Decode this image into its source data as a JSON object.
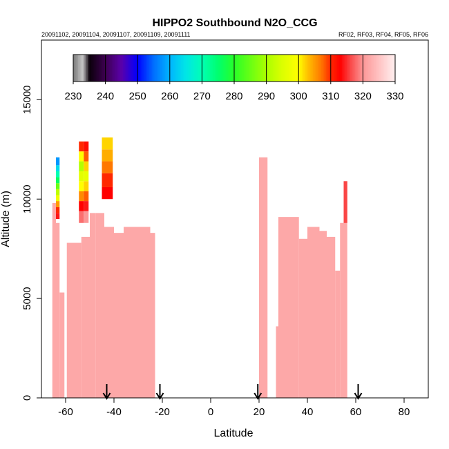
{
  "chart_data": {
    "type": "heatmap",
    "title": "HIPPO2 Southbound N2O_CCG",
    "subtitle_left": "20091102, 20091104, 20091107, 20091109, 20091111",
    "subtitle_right": "RF02, RF03, RF04, RF05, RF06",
    "xlabel": "Latitude",
    "ylabel": "Altitude (m)",
    "xlim": [
      -70,
      90
    ],
    "ylim": [
      0,
      18000
    ],
    "x_ticks": [
      -60,
      -40,
      -20,
      0,
      20,
      40,
      60,
      80
    ],
    "y_ticks": [
      0,
      5000,
      10000,
      15000
    ],
    "colorbar": {
      "range": [
        230,
        330
      ],
      "ticks": [
        230,
        240,
        250,
        260,
        270,
        280,
        290,
        300,
        310,
        320,
        330
      ]
    },
    "arrows_latitude": [
      -43,
      -21,
      19.5,
      61
    ],
    "columns": [
      {
        "x0": -65.5,
        "x1": -64,
        "y0": 0,
        "y1": 9800,
        "v": 322
      },
      {
        "x0": -64,
        "x1": -62.5,
        "y0": 0,
        "y1": 8800,
        "v": 322
      },
      {
        "x0": -62.5,
        "x1": -60.5,
        "y0": 0,
        "y1": 5300,
        "v": 322
      },
      {
        "x0": -59.5,
        "x1": -53.5,
        "y0": 0,
        "y1": 7800,
        "v": 322
      },
      {
        "x0": -53.5,
        "x1": -50,
        "y0": 0,
        "y1": 8100,
        "v": 322
      },
      {
        "x0": -50,
        "x1": -47.5,
        "y0": 0,
        "y1": 9300,
        "v": 322
      },
      {
        "x0": -47.5,
        "x1": -44,
        "y0": 0,
        "y1": 9300,
        "v": 322
      },
      {
        "x0": -44,
        "x1": -40,
        "y0": 0,
        "y1": 8600,
        "v": 322
      },
      {
        "x0": -40,
        "x1": -36,
        "y0": 0,
        "y1": 8300,
        "v": 322
      },
      {
        "x0": -36,
        "x1": -25,
        "y0": 0,
        "y1": 8600,
        "v": 322
      },
      {
        "x0": -25,
        "x1": -23,
        "y0": 0,
        "y1": 8300,
        "v": 322
      },
      {
        "x0": 20,
        "x1": 23.5,
        "y0": 0,
        "y1": 12100,
        "v": 322
      },
      {
        "x0": 27,
        "x1": 28,
        "y0": 0,
        "y1": 3600,
        "v": 322
      },
      {
        "x0": 28,
        "x1": 32,
        "y0": 0,
        "y1": 9100,
        "v": 322
      },
      {
        "x0": 32,
        "x1": 36.5,
        "y0": 0,
        "y1": 9100,
        "v": 322
      },
      {
        "x0": 36.5,
        "x1": 40,
        "y0": 0,
        "y1": 8000,
        "v": 322
      },
      {
        "x0": 40,
        "x1": 45,
        "y0": 0,
        "y1": 8600,
        "v": 322
      },
      {
        "x0": 45,
        "x1": 48,
        "y0": 0,
        "y1": 8400,
        "v": 322
      },
      {
        "x0": 48,
        "x1": 51.5,
        "y0": 0,
        "y1": 8100,
        "v": 322
      },
      {
        "x0": 51.5,
        "x1": 53.5,
        "y0": 0,
        "y1": 6400,
        "v": 322
      },
      {
        "x0": 53.5,
        "x1": 55,
        "y0": 0,
        "y1": 8800,
        "v": 322
      },
      {
        "x0": 55,
        "x1": 56.5,
        "y0": 0,
        "y1": 10900,
        "v": 322
      }
    ],
    "cells": [
      {
        "x0": -64,
        "x1": -62.5,
        "y0": 9000,
        "y1": 9300,
        "v": 314
      },
      {
        "x0": -64,
        "x1": -62.5,
        "y0": 9300,
        "y1": 9600,
        "v": 310
      },
      {
        "x0": -64,
        "x1": -62.5,
        "y0": 9600,
        "y1": 9900,
        "v": 305
      },
      {
        "x0": -64,
        "x1": -62.5,
        "y0": 9900,
        "y1": 10200,
        "v": 298
      },
      {
        "x0": -64,
        "x1": -62.5,
        "y0": 10200,
        "y1": 10500,
        "v": 292
      },
      {
        "x0": -64,
        "x1": -62.5,
        "y0": 10500,
        "y1": 10800,
        "v": 285
      },
      {
        "x0": -64,
        "x1": -62.5,
        "y0": 10800,
        "y1": 11100,
        "v": 276
      },
      {
        "x0": -64,
        "x1": -62.5,
        "y0": 11100,
        "y1": 11400,
        "v": 270
      },
      {
        "x0": -64,
        "x1": -62.5,
        "y0": 11400,
        "y1": 11700,
        "v": 264
      },
      {
        "x0": -64,
        "x1": -62.5,
        "y0": 11700,
        "y1": 12100,
        "v": 258
      },
      {
        "x0": -54.5,
        "x1": -52.5,
        "y0": 8800,
        "y1": 9400,
        "v": 318
      },
      {
        "x0": -54.5,
        "x1": -52.5,
        "y0": 9400,
        "y1": 9900,
        "v": 313
      },
      {
        "x0": -54.5,
        "x1": -52.5,
        "y0": 9900,
        "y1": 10400,
        "v": 306
      },
      {
        "x0": -54.5,
        "x1": -52.5,
        "y0": 10400,
        "y1": 10900,
        "v": 300
      },
      {
        "x0": -54.5,
        "x1": -52.5,
        "y0": 10900,
        "y1": 11400,
        "v": 296
      },
      {
        "x0": -54.5,
        "x1": -52.5,
        "y0": 11400,
        "y1": 11900,
        "v": 291
      },
      {
        "x0": -54.5,
        "x1": -52.5,
        "y0": 11900,
        "y1": 12400,
        "v": 300
      },
      {
        "x0": -54.5,
        "x1": -52.5,
        "y0": 12400,
        "y1": 12900,
        "v": 310
      },
      {
        "x0": -52.5,
        "x1": -50.5,
        "y0": 8800,
        "y1": 9400,
        "v": 320
      },
      {
        "x0": -52.5,
        "x1": -50.5,
        "y0": 9400,
        "y1": 9900,
        "v": 314
      },
      {
        "x0": -52.5,
        "x1": -50.5,
        "y0": 9900,
        "y1": 10400,
        "v": 308
      },
      {
        "x0": -52.5,
        "x1": -50.5,
        "y0": 10400,
        "y1": 10900,
        "v": 302
      },
      {
        "x0": -52.5,
        "x1": -50.5,
        "y0": 10900,
        "y1": 11400,
        "v": 297
      },
      {
        "x0": -52.5,
        "x1": -50.5,
        "y0": 11400,
        "y1": 11900,
        "v": 302
      },
      {
        "x0": -52.5,
        "x1": -50.5,
        "y0": 11900,
        "y1": 12400,
        "v": 308
      },
      {
        "x0": -52.5,
        "x1": -50.5,
        "y0": 12400,
        "y1": 12900,
        "v": 312
      },
      {
        "x0": -45,
        "x1": -40.5,
        "y0": 10000,
        "y1": 10600,
        "v": 313
      },
      {
        "x0": -45,
        "x1": -40.5,
        "y0": 10600,
        "y1": 11300,
        "v": 310
      },
      {
        "x0": -45,
        "x1": -40.5,
        "y0": 11300,
        "y1": 11900,
        "v": 307
      },
      {
        "x0": -45,
        "x1": -40.5,
        "y0": 11900,
        "y1": 12500,
        "v": 304
      },
      {
        "x0": -45,
        "x1": -40.5,
        "y0": 12500,
        "y1": 13100,
        "v": 302
      },
      {
        "x0": 55,
        "x1": 56.5,
        "y0": 8800,
        "y1": 10900,
        "v": 316
      }
    ]
  }
}
